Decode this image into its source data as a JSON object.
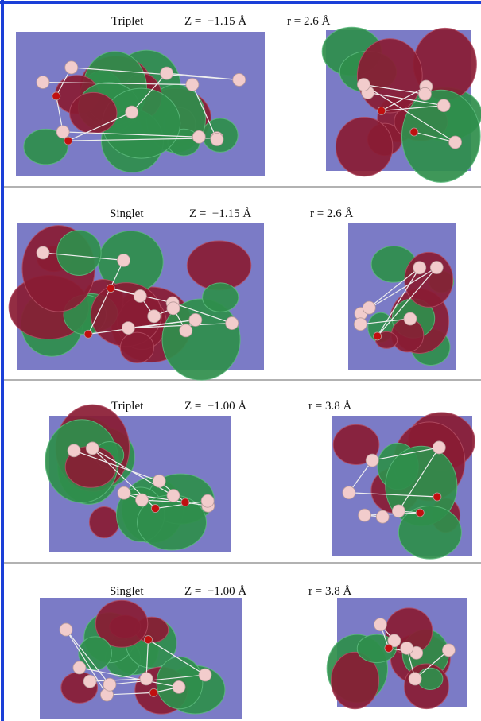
{
  "panels": [
    {
      "state": "Triplet",
      "z": "Z =  −1.15 Å",
      "r": "r = 2.6 Å"
    },
    {
      "state": "Singlet",
      "z": "Z =  −1.15 Å",
      "r": "r = 2.6 Å"
    },
    {
      "state": "Triplet",
      "z": "Z =  −1.00 Å",
      "r": "r = 3.8 Å"
    },
    {
      "state": "Singlet",
      "z": "Z =  −1.00 Å",
      "r": "r = 3.8 Å"
    }
  ]
}
